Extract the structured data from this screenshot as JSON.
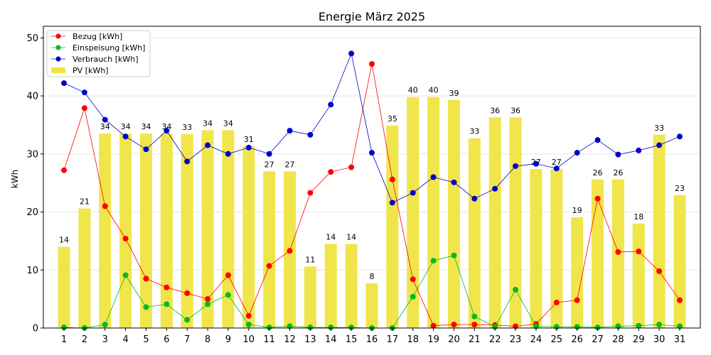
{
  "chart_data": {
    "type": "bar+line",
    "title": "Energie März 2025",
    "xlabel": "",
    "ylabel": "kWh",
    "ylim": [
      0,
      52
    ],
    "yticks": [
      0,
      10,
      20,
      30,
      40,
      50
    ],
    "grid": "horizontal",
    "legend_position": "top-left",
    "categories": [
      "1",
      "2",
      "3",
      "4",
      "5",
      "6",
      "7",
      "8",
      "9",
      "10",
      "11",
      "12",
      "13",
      "14",
      "15",
      "16",
      "17",
      "18",
      "19",
      "20",
      "21",
      "22",
      "23",
      "24",
      "25",
      "26",
      "27",
      "28",
      "29",
      "30",
      "31"
    ],
    "bars": {
      "name": "PV [kWh]",
      "color": "#f0e442",
      "values": [
        14,
        20.6,
        33.5,
        33.5,
        33.5,
        33.5,
        33.4,
        34.1,
        34.1,
        31.3,
        27,
        27,
        10.6,
        14.5,
        14.5,
        7.7,
        34.9,
        39.8,
        39.8,
        39.3,
        32.7,
        36.3,
        36.3,
        27.4,
        27.4,
        19.1,
        25.6,
        25.6,
        18,
        33.3,
        22.9
      ],
      "labels": [
        "14",
        "21",
        "34",
        "34",
        "34",
        "34",
        "33",
        "34",
        "34",
        "31",
        "27",
        "27",
        "11",
        "14",
        "14",
        "8",
        "35",
        "40",
        "40",
        "39",
        "33",
        "36",
        "36",
        "27",
        "27",
        "19",
        "26",
        "26",
        "18",
        "33",
        "23"
      ]
    },
    "series": [
      {
        "name": "Bezug [kWh]",
        "color": "#ff0000",
        "values": [
          27.2,
          37.9,
          21,
          15.4,
          8.5,
          7,
          6,
          5,
          9.1,
          2.1,
          10.7,
          13.3,
          23.3,
          26.9,
          27.7,
          45.5,
          25.6,
          8.4,
          0.4,
          0.6,
          0.6,
          0.5,
          0.3,
          0.7,
          4.4,
          4.8,
          22.3,
          13.1,
          13.2,
          9.8,
          4.8
        ]
      },
      {
        "name": "Einspeisung [kWh]",
        "color": "#00bb22",
        "values": [
          0.1,
          0,
          0.6,
          9.1,
          3.6,
          4.1,
          1.4,
          4.1,
          5.7,
          0.6,
          0.1,
          0.3,
          0.1,
          0.1,
          0.1,
          0,
          0,
          5.4,
          11.6,
          12.5,
          2,
          0.2,
          6.6,
          0.3,
          0.2,
          0.2,
          0.1,
          0.3,
          0.4,
          0.6,
          0.3
        ]
      },
      {
        "name": "Verbrauch [kWh]",
        "color": "#0000cc",
        "values": [
          42.2,
          40.6,
          35.9,
          33,
          30.8,
          34,
          28.7,
          31.5,
          30,
          31.1,
          30,
          34,
          33.3,
          38.5,
          47.3,
          30.2,
          21.6,
          23.3,
          26,
          25.1,
          22.3,
          24,
          27.9,
          28.3,
          27.5,
          30.2,
          32.4,
          29.9,
          30.6,
          31.5,
          33
        ]
      }
    ]
  }
}
